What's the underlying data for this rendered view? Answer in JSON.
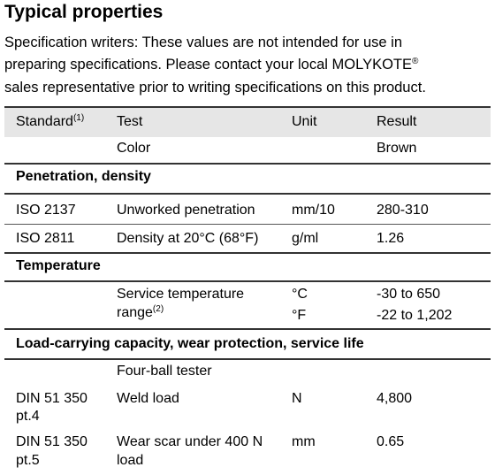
{
  "header": {
    "title": "Typical properties",
    "intro_lines": [
      "Specification writers: These values are not intended for use in",
      "preparing specifications. Please contact your local MOLYKOTE",
      "sales representative prior to writing specifications on this product."
    ],
    "trademark": "®"
  },
  "table": {
    "columns": [
      "Standard",
      "Test",
      "Unit",
      "Result"
    ],
    "standard_note": "(1)",
    "rows": [
      {
        "test": "Color",
        "result": "Brown"
      },
      {
        "section": "Penetration, density"
      },
      {
        "standard": "ISO 2137",
        "test": "Unworked penetration",
        "unit": "mm/10",
        "result": "280-310"
      },
      {
        "standard": "ISO 2811",
        "test": "Density at 20°C (68°F)",
        "unit": "g/ml",
        "result": "1.26"
      },
      {
        "section": "Temperature"
      },
      {
        "test": [
          "Service temperature",
          "range"
        ],
        "test_note": "(2)",
        "unit": [
          "°C",
          "°F"
        ],
        "result": [
          "-30 to 650",
          "-22 to 1,202"
        ]
      },
      {
        "section": "Load-carrying capacity, wear protection, service life"
      },
      {
        "test": "Four-ball tester"
      },
      {
        "standard": [
          "DIN 51 350",
          "pt.4"
        ],
        "test": "Weld load",
        "unit": "N",
        "result": "4,800"
      },
      {
        "standard": [
          "DIN 51 350",
          "pt.5"
        ],
        "test": [
          "Wear scar under 400 N",
          "load"
        ],
        "unit": "mm",
        "result": "0.65"
      }
    ]
  }
}
